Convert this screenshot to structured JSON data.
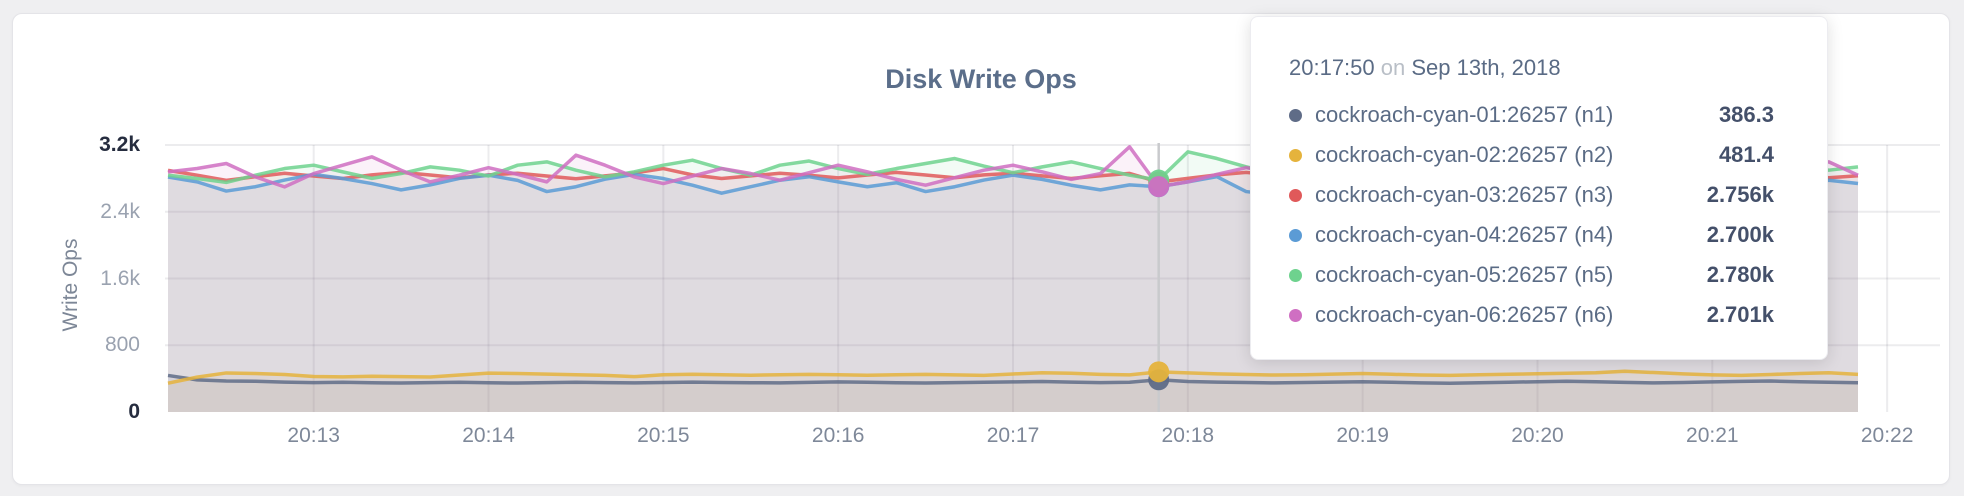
{
  "card": {
    "title": "Disk Write Ops"
  },
  "tooltip": {
    "time": "20:17:50",
    "connector": "on",
    "date": "Sep 13th, 2018",
    "rows": [
      {
        "name": "cockroach-cyan-01:26257 (n1)",
        "value": "386.3",
        "color": "#5f6c87"
      },
      {
        "name": "cockroach-cyan-02:26257 (n2)",
        "value": "481.4",
        "color": "#e5b33c"
      },
      {
        "name": "cockroach-cyan-03:26257 (n3)",
        "value": "2.756k",
        "color": "#e0595a"
      },
      {
        "name": "cockroach-cyan-04:26257 (n4)",
        "value": "2.700k",
        "color": "#5b9bd5"
      },
      {
        "name": "cockroach-cyan-05:26257 (n5)",
        "value": "2.780k",
        "color": "#6ed28e"
      },
      {
        "name": "cockroach-cyan-06:26257 (n6)",
        "value": "2.701k",
        "color": "#cf6fc2"
      }
    ]
  },
  "chart_data": {
    "type": "line",
    "title": "Disk Write Ops",
    "xlabel": "",
    "ylabel": "Write Ops",
    "ylim": [
      0,
      3200
    ],
    "grid": true,
    "x_start": "20:12:10",
    "x_step_seconds": 10,
    "hover": {
      "index": 34,
      "time": "20:17:50",
      "date": "Sep 13th, 2018"
    },
    "x_ticks": [
      {
        "label": "20:13",
        "index": 5
      },
      {
        "label": "20:14",
        "index": 11
      },
      {
        "label": "20:15",
        "index": 17
      },
      {
        "label": "20:16",
        "index": 23
      },
      {
        "label": "20:17",
        "index": 29
      },
      {
        "label": "20:18",
        "index": 35
      },
      {
        "label": "20:19",
        "index": 41
      },
      {
        "label": "20:20",
        "index": 47
      },
      {
        "label": "20:21",
        "index": 53
      },
      {
        "label": "20:22",
        "index": 59
      }
    ],
    "y_ticks": [
      {
        "label": "3.2k",
        "value": 3200,
        "strong": true
      },
      {
        "label": "2.4k",
        "value": 2400,
        "strong": false
      },
      {
        "label": "1.6k",
        "value": 1600,
        "strong": false
      },
      {
        "label": "800",
        "value": 800,
        "strong": false
      },
      {
        "label": "0",
        "value": 0,
        "strong": true
      }
    ],
    "series": [
      {
        "name": "cockroach-cyan-01:26257 (n1)",
        "color": "#5f6c87",
        "hover_value": 386.3,
        "values": [
          438,
          385,
          372,
          368,
          358,
          352,
          356,
          350,
          348,
          352,
          356,
          350,
          347,
          352,
          357,
          352,
          349,
          354,
          358,
          354,
          351,
          349,
          355,
          361,
          356,
          351,
          347,
          352,
          357,
          361,
          365,
          358,
          352,
          356,
          386.3,
          366,
          358,
          353,
          349,
          354,
          358,
          363,
          356,
          349,
          345,
          350,
          357,
          363,
          369,
          362,
          355,
          349,
          354,
          361,
          367,
          371,
          362,
          356,
          351
        ]
      },
      {
        "name": "cockroach-cyan-02:26257 (n2)",
        "color": "#e5b33c",
        "hover_value": 481.4,
        "values": [
          345,
          418,
          468,
          461,
          449,
          426,
          421,
          428,
          424,
          420,
          443,
          466,
          461,
          454,
          447,
          439,
          424,
          446,
          453,
          446,
          441,
          446,
          451,
          446,
          441,
          446,
          451,
          445,
          439,
          456,
          471,
          464,
          451,
          445,
          481.4,
          469,
          457,
          449,
          443,
          447,
          454,
          461,
          452,
          443,
          439,
          446,
          452,
          459,
          465,
          471,
          489,
          473,
          457,
          445,
          439,
          450,
          461,
          471,
          451
        ]
      },
      {
        "name": "cockroach-cyan-03:26257 (n3)",
        "color": "#e0595a",
        "hover_value": 2756,
        "values": [
          2896,
          2838,
          2776,
          2820,
          2862,
          2828,
          2798,
          2842,
          2872,
          2840,
          2806,
          2842,
          2862,
          2828,
          2796,
          2830,
          2864,
          2918,
          2842,
          2798,
          2830,
          2862,
          2838,
          2806,
          2840,
          2872,
          2840,
          2808,
          2842,
          2862,
          2830,
          2798,
          2832,
          2860,
          2756,
          2800,
          2842,
          2872,
          2840,
          2808,
          2842,
          2862,
          2830,
          2798,
          2832,
          2864,
          2898,
          2850,
          2818,
          2842,
          2862,
          2830,
          2798,
          2832,
          2852,
          2872,
          2838,
          2808,
          2832
        ]
      },
      {
        "name": "cockroach-cyan-04:26257 (n4)",
        "color": "#5b9bd5",
        "hover_value": 2700,
        "values": [
          2816,
          2758,
          2648,
          2700,
          2780,
          2848,
          2798,
          2738,
          2662,
          2722,
          2800,
          2838,
          2776,
          2642,
          2700,
          2790,
          2848,
          2798,
          2718,
          2622,
          2700,
          2778,
          2820,
          2758,
          2700,
          2748,
          2642,
          2700,
          2780,
          2838,
          2788,
          2718,
          2662,
          2722,
          2700,
          2758,
          2820,
          2642,
          2602,
          2678,
          2758,
          2818,
          2768,
          2622,
          2678,
          2758,
          2828,
          2778,
          2700,
          2632,
          2710,
          2788,
          2838,
          2778,
          2700,
          2622,
          2700,
          2778,
          2738
        ]
      },
      {
        "name": "cockroach-cyan-05:26257 (n5)",
        "color": "#6ed28e",
        "hover_value": 2780,
        "values": [
          2838,
          2798,
          2752,
          2838,
          2918,
          2958,
          2878,
          2800,
          2858,
          2938,
          2898,
          2828,
          2958,
          2998,
          2898,
          2818,
          2878,
          2958,
          3018,
          2918,
          2838,
          2958,
          3008,
          2918,
          2848,
          2918,
          2978,
          3038,
          2948,
          2868,
          2938,
          2998,
          2918,
          2838,
          2780,
          3118,
          3038,
          2938,
          2858,
          2958,
          3028,
          2948,
          2868,
          2928,
          2998,
          2918,
          2848,
          2918,
          2988,
          3048,
          2958,
          2878,
          2938,
          3008,
          2938,
          3058,
          2978,
          2898,
          2938
        ]
      },
      {
        "name": "cockroach-cyan-06:26257 (n6)",
        "color": "#cf6fc2",
        "hover_value": 2701,
        "values": [
          2878,
          2918,
          2978,
          2818,
          2698,
          2858,
          2958,
          3058,
          2898,
          2758,
          2838,
          2928,
          2848,
          2758,
          3078,
          2958,
          2818,
          2738,
          2828,
          2918,
          2858,
          2778,
          2868,
          2958,
          2878,
          2788,
          2718,
          2808,
          2898,
          2958,
          2878,
          2788,
          2858,
          3178,
          2701,
          2758,
          2848,
          2928,
          2868,
          2788,
          2858,
          2938,
          2878,
          2798,
          2738,
          2818,
          2898,
          2958,
          2888,
          2808,
          2868,
          2938,
          2878,
          2798,
          2758,
          2838,
          2918,
          2998,
          2838
        ]
      }
    ]
  }
}
